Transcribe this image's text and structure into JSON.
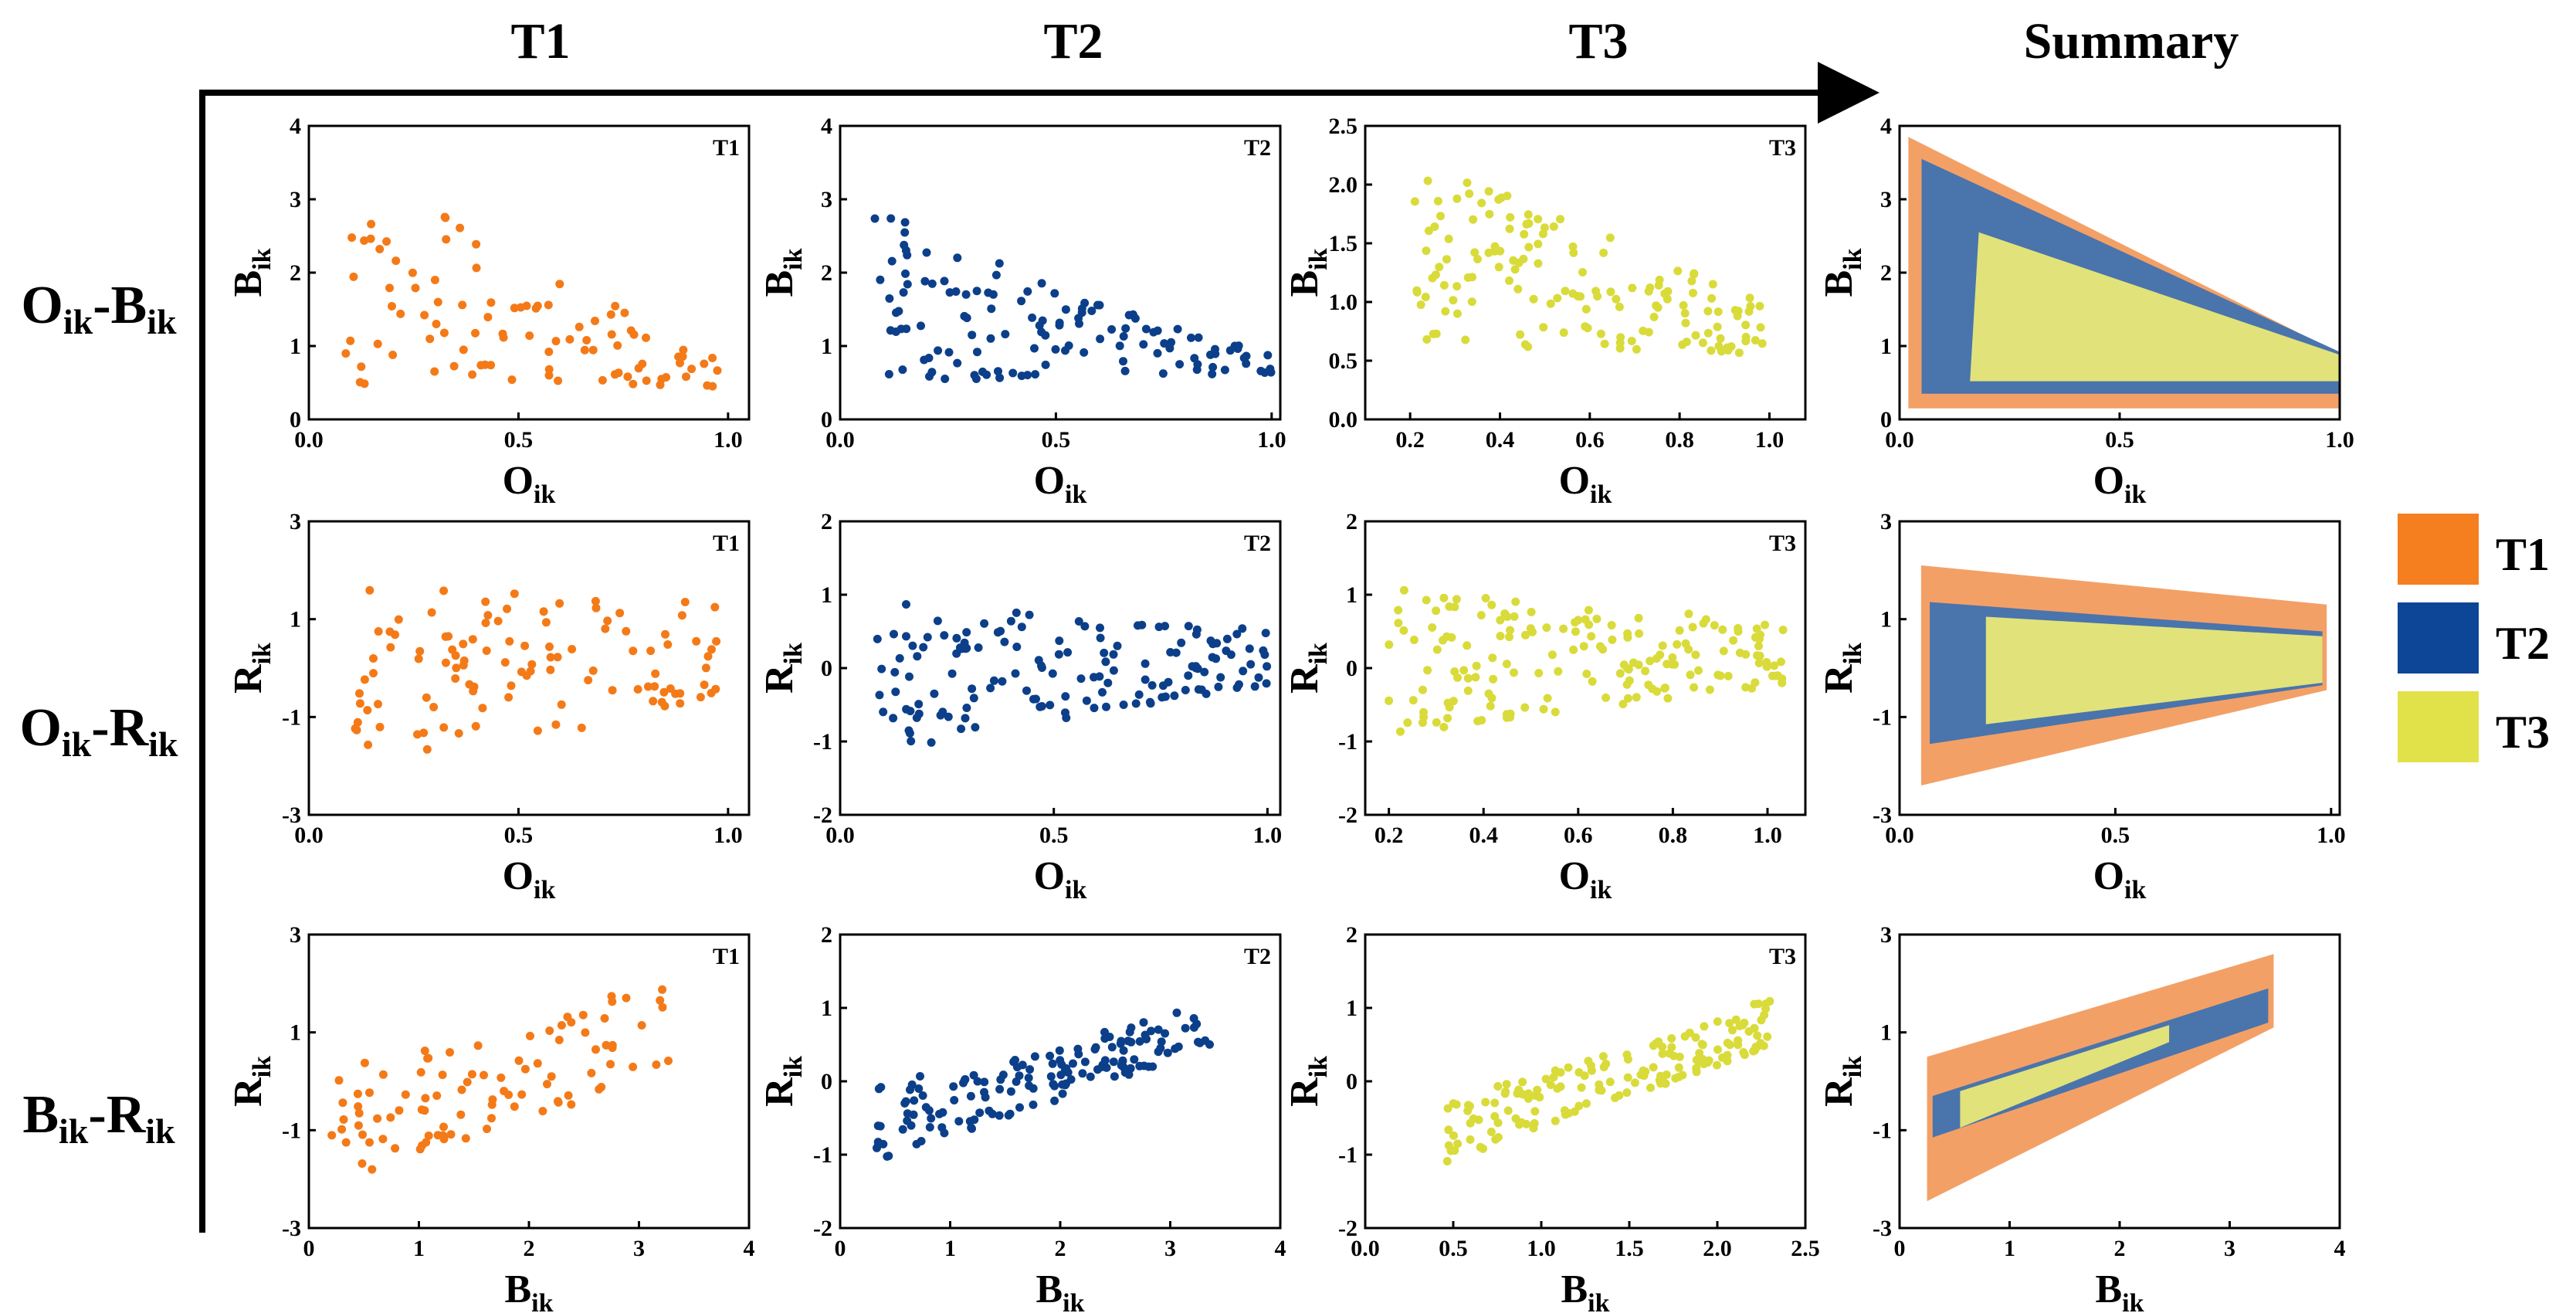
{
  "columns": [
    "T1",
    "T2",
    "T3",
    "Summary"
  ],
  "rows": [
    {
      "main": "O",
      "sub": "ik",
      "dash": "-",
      "main2": "B",
      "sub2": "ik"
    },
    {
      "main": "O",
      "sub": "ik",
      "dash": "-",
      "main2": "R",
      "sub2": "ik"
    },
    {
      "main": "B",
      "sub": "ik",
      "dash": "-",
      "main2": "R",
      "sub2": "ik"
    }
  ],
  "legend": [
    {
      "label": "T1",
      "color": "#f57e1f"
    },
    {
      "label": "T2",
      "color": "#0e4697"
    },
    {
      "label": "T3",
      "color": "#e1e14a"
    }
  ],
  "colors": {
    "t1_point": "#f47a18",
    "t2_point": "#0c3f8a",
    "t3_point": "#d9db3a",
    "t1_fill": "#f3a066",
    "t2_fill": "#4a74ac",
    "t3_fill": "#e1e27a"
  },
  "chart_data": [
    {
      "id": "r0c0",
      "type": "scatter",
      "series": "T1",
      "tag": "T1",
      "xlabel": {
        "main": "O",
        "sub": "ik"
      },
      "ylabel": {
        "main": "B",
        "sub": "ik"
      },
      "xlim": [
        0,
        1.05
      ],
      "ylim": [
        0,
        4
      ],
      "xticks": [
        0,
        0.5,
        1
      ],
      "xtick_labels": [
        "0.0",
        "0.5",
        "1.0"
      ],
      "yticks": [
        0,
        1,
        2,
        3,
        4
      ],
      "ytick_labels": [
        "0",
        "1",
        "2",
        "3",
        "4"
      ],
      "seed": 11,
      "gen": {
        "n": 95,
        "x0": 0.07,
        "x1": 0.98,
        "hi_a": 3.8,
        "hi_b": 0.9,
        "lo_a": 0.2,
        "lo_b": 0.4,
        "pow": 1.0
      }
    },
    {
      "id": "r0c1",
      "type": "scatter",
      "series": "T2",
      "tag": "T2",
      "xlabel": {
        "main": "O",
        "sub": "ik"
      },
      "ylabel": {
        "main": "B",
        "sub": "ik"
      },
      "xlim": [
        0,
        1.02
      ],
      "ylim": [
        0,
        4
      ],
      "xticks": [
        0,
        0.5,
        1
      ],
      "xtick_labels": [
        "0.0",
        "0.5",
        "1.0"
      ],
      "yticks": [
        0,
        1,
        2,
        3,
        4
      ],
      "ytick_labels": [
        "0",
        "1",
        "2",
        "3",
        "4"
      ],
      "seed": 23,
      "gen": {
        "n": 130,
        "x0": 0.08,
        "x1": 1.0,
        "hi_a": 3.4,
        "hi_b": 0.9,
        "lo_a": 0.3,
        "lo_b": 0.6,
        "pow": 0.7
      }
    },
    {
      "id": "r0c2",
      "type": "scatter",
      "series": "T3",
      "tag": "T3",
      "xlabel": {
        "main": "O",
        "sub": "ik"
      },
      "ylabel": {
        "main": "B",
        "sub": "ik"
      },
      "xlim": [
        0.1,
        1.08
      ],
      "ylim": [
        0,
        2.5
      ],
      "xticks": [
        0.2,
        0.4,
        0.6,
        0.8,
        1.0
      ],
      "xtick_labels": [
        "0.2",
        "0.4",
        "0.6",
        "0.8",
        "1.0"
      ],
      "yticks": [
        0,
        0.5,
        1,
        1.5,
        2,
        2.5
      ],
      "ytick_labels": [
        "0.0",
        "0.5",
        "1.0",
        "1.5",
        "2.0",
        "2.5"
      ],
      "seed": 37,
      "gen": {
        "n": 150,
        "x0": 0.2,
        "x1": 1.0,
        "hi_a": 2.3,
        "hi_b": 1.0,
        "lo_a": 0.5,
        "lo_b": 0.5,
        "pow": 1.2
      }
    },
    {
      "id": "r0c3",
      "type": "area",
      "tag": "",
      "xlabel": {
        "main": "O",
        "sub": "ik"
      },
      "ylabel": {
        "main": "B",
        "sub": "ik"
      },
      "xlim": [
        0,
        1
      ],
      "ylim": [
        0,
        4
      ],
      "xticks": [
        0,
        0.5,
        1
      ],
      "xtick_labels": [
        "0.0",
        "0.5",
        "1.0"
      ],
      "yticks": [
        0,
        1,
        2,
        3,
        4
      ],
      "ytick_labels": [
        "0",
        "1",
        "2",
        "3",
        "4"
      ],
      "polygons": [
        {
          "series": "T1",
          "points": [
            [
              0.02,
              3.85
            ],
            [
              1.0,
              0.9
            ],
            [
              1.0,
              0.15
            ],
            [
              0.02,
              0.15
            ]
          ]
        },
        {
          "series": "T2",
          "points": [
            [
              0.05,
              3.55
            ],
            [
              1.0,
              0.92
            ],
            [
              1.0,
              0.35
            ],
            [
              0.05,
              0.35
            ]
          ]
        },
        {
          "series": "T3",
          "points": [
            [
              0.18,
              2.55
            ],
            [
              1.0,
              0.88
            ],
            [
              1.0,
              0.52
            ],
            [
              0.16,
              0.52
            ]
          ]
        }
      ]
    },
    {
      "id": "r1c0",
      "type": "scatter",
      "series": "T1",
      "tag": "T1",
      "xlabel": {
        "main": "O",
        "sub": "ik"
      },
      "ylabel": {
        "main": "R",
        "sub": "ik"
      },
      "xlim": [
        0,
        1.05
      ],
      "ylim": [
        -3,
        3
      ],
      "xticks": [
        0,
        0.5,
        1
      ],
      "xtick_labels": [
        "0.0",
        "0.5",
        "1.0"
      ],
      "yticks": [
        -3,
        -1,
        1,
        3
      ],
      "ytick_labels": [
        "-3",
        "-1",
        "1",
        "3"
      ],
      "seed": 41,
      "gen": {
        "n": 110,
        "x0": 0.1,
        "x1": 0.98,
        "hi_a": 2.0,
        "hi_b": 1.6,
        "lo_a": -2.3,
        "lo_b": -1.0,
        "pow": 1.0
      }
    },
    {
      "id": "r1c1",
      "type": "scatter",
      "series": "T2",
      "tag": "T2",
      "xlabel": {
        "main": "O",
        "sub": "ik"
      },
      "ylabel": {
        "main": "R",
        "sub": "ik"
      },
      "xlim": [
        0,
        1.03
      ],
      "ylim": [
        -2,
        2
      ],
      "xticks": [
        0,
        0.5,
        1
      ],
      "xtick_labels": [
        "0.0",
        "0.5",
        "1.0"
      ],
      "yticks": [
        -2,
        -1,
        0,
        1,
        2
      ],
      "ytick_labels": [
        "-2",
        "-1",
        "0",
        "1",
        "2"
      ],
      "seed": 53,
      "gen": {
        "n": 150,
        "x0": 0.08,
        "x1": 1.0,
        "hi_a": 1.2,
        "hi_b": 0.6,
        "lo_a": -1.4,
        "lo_b": -0.3,
        "pow": 1.0
      }
    },
    {
      "id": "r1c2",
      "type": "scatter",
      "series": "T3",
      "tag": "T3",
      "xlabel": {
        "main": "O",
        "sub": "ik"
      },
      "ylabel": {
        "main": "R",
        "sub": "ik"
      },
      "xlim": [
        0.15,
        1.08
      ],
      "ylim": [
        -2,
        2
      ],
      "xticks": [
        0.2,
        0.4,
        0.6,
        0.8,
        1.0
      ],
      "xtick_labels": [
        "0.2",
        "0.4",
        "0.6",
        "0.8",
        "1.0"
      ],
      "yticks": [
        -2,
        -1,
        0,
        1,
        2
      ],
      "ytick_labels": [
        "-2",
        "-1",
        "0",
        "1",
        "2"
      ],
      "seed": 67,
      "gen": {
        "n": 170,
        "x0": 0.2,
        "x1": 1.04,
        "hi_a": 1.3,
        "hi_b": 0.7,
        "lo_a": -1.1,
        "lo_b": -0.3,
        "pow": 1.0
      }
    },
    {
      "id": "r1c3",
      "type": "area",
      "tag": "",
      "xlabel": {
        "main": "O",
        "sub": "ik"
      },
      "ylabel": {
        "main": "R",
        "sub": "ik"
      },
      "xlim": [
        0,
        1.02
      ],
      "ylim": [
        -3,
        3
      ],
      "xticks": [
        0,
        0.5,
        1
      ],
      "xtick_labels": [
        "0.0",
        "0.5",
        "1.0"
      ],
      "yticks": [
        -3,
        -1,
        1,
        3
      ],
      "ytick_labels": [
        "-3",
        "-1",
        "1",
        "3"
      ],
      "polygons": [
        {
          "series": "T1",
          "points": [
            [
              0.05,
              2.1
            ],
            [
              0.99,
              1.3
            ],
            [
              0.99,
              -0.45
            ],
            [
              0.05,
              -2.4
            ]
          ]
        },
        {
          "series": "T2",
          "points": [
            [
              0.07,
              1.35
            ],
            [
              0.98,
              0.75
            ],
            [
              0.98,
              -0.35
            ],
            [
              0.07,
              -1.55
            ]
          ]
        },
        {
          "series": "T3",
          "points": [
            [
              0.2,
              1.05
            ],
            [
              0.98,
              0.65
            ],
            [
              0.98,
              -0.3
            ],
            [
              0.2,
              -1.15
            ]
          ]
        }
      ]
    },
    {
      "id": "r2c0",
      "type": "scatter",
      "series": "T1",
      "tag": "T1",
      "xlabel": {
        "main": "B",
        "sub": "ik"
      },
      "ylabel": {
        "main": "R",
        "sub": "ik"
      },
      "xlim": [
        0,
        4
      ],
      "ylim": [
        -3,
        3
      ],
      "xticks": [
        0,
        1,
        2,
        3,
        4
      ],
      "xtick_labels": [
        "0",
        "1",
        "2",
        "3",
        "4"
      ],
      "yticks": [
        -3,
        -1,
        1,
        3
      ],
      "ytick_labels": [
        "-3",
        "-1",
        "1",
        "3"
      ],
      "seed": 79,
      "gen": {
        "n": 95,
        "x0": 0.2,
        "x1": 3.3,
        "hi_a": 0.5,
        "hi_b": 2.4,
        "lo_a": -2.3,
        "lo_b": 0.0,
        "pow": 1.3
      }
    },
    {
      "id": "r2c1",
      "type": "scatter",
      "series": "T2",
      "tag": "T2",
      "xlabel": {
        "main": "B",
        "sub": "ik"
      },
      "ylabel": {
        "main": "R",
        "sub": "ik"
      },
      "xlim": [
        0,
        4
      ],
      "ylim": [
        -2,
        2
      ],
      "xticks": [
        0,
        1,
        2,
        3,
        4
      ],
      "xtick_labels": [
        "0",
        "1",
        "2",
        "3",
        "4"
      ],
      "yticks": [
        -2,
        -1,
        0,
        1,
        2
      ],
      "ytick_labels": [
        "-2",
        "-1",
        "0",
        "1",
        "2"
      ],
      "seed": 83,
      "gen": {
        "n": 150,
        "x0": 0.3,
        "x1": 3.4,
        "hi_a": 0.1,
        "hi_b": 1.2,
        "lo_a": -1.2,
        "lo_b": 0.4,
        "pow": 1.4
      }
    },
    {
      "id": "r2c2",
      "type": "scatter",
      "series": "T3",
      "tag": "T3",
      "xlabel": {
        "main": "B",
        "sub": "ik"
      },
      "ylabel": {
        "main": "R",
        "sub": "ik"
      },
      "xlim": [
        0,
        2.5
      ],
      "ylim": [
        -2,
        2
      ],
      "xticks": [
        0,
        0.5,
        1,
        1.5,
        2,
        2.5
      ],
      "xtick_labels": [
        "0.0",
        "0.5",
        "1.0",
        "1.5",
        "2.0",
        "2.5"
      ],
      "yticks": [
        -2,
        -1,
        0,
        1,
        2
      ],
      "ytick_labels": [
        "-2",
        "-1",
        "0",
        "1",
        "2"
      ],
      "seed": 97,
      "gen": {
        "n": 160,
        "x0": 0.45,
        "x1": 2.3,
        "hi_a": -0.1,
        "hi_b": 1.2,
        "lo_a": -1.2,
        "lo_b": 0.4,
        "pow": 1.3
      }
    },
    {
      "id": "r2c3",
      "type": "area",
      "tag": "",
      "xlabel": {
        "main": "B",
        "sub": "ik"
      },
      "ylabel": {
        "main": "R",
        "sub": "ik"
      },
      "xlim": [
        0,
        4
      ],
      "ylim": [
        -3,
        3
      ],
      "xticks": [
        0,
        1,
        2,
        3,
        4
      ],
      "xtick_labels": [
        "0",
        "1",
        "2",
        "3",
        "4"
      ],
      "yticks": [
        -3,
        -1,
        1,
        3
      ],
      "ytick_labels": [
        "-3",
        "-1",
        "1",
        "3"
      ],
      "polygons": [
        {
          "series": "T1",
          "points": [
            [
              0.25,
              0.5
            ],
            [
              3.4,
              2.6
            ],
            [
              3.4,
              1.1
            ],
            [
              0.25,
              -2.45
            ]
          ]
        },
        {
          "series": "T2",
          "points": [
            [
              0.3,
              -0.3
            ],
            [
              3.35,
              1.9
            ],
            [
              3.35,
              1.2
            ],
            [
              0.3,
              -1.15
            ]
          ]
        },
        {
          "series": "T3",
          "points": [
            [
              0.55,
              -0.2
            ],
            [
              2.45,
              1.15
            ],
            [
              2.45,
              0.8
            ],
            [
              0.55,
              -0.95
            ]
          ]
        }
      ]
    }
  ]
}
